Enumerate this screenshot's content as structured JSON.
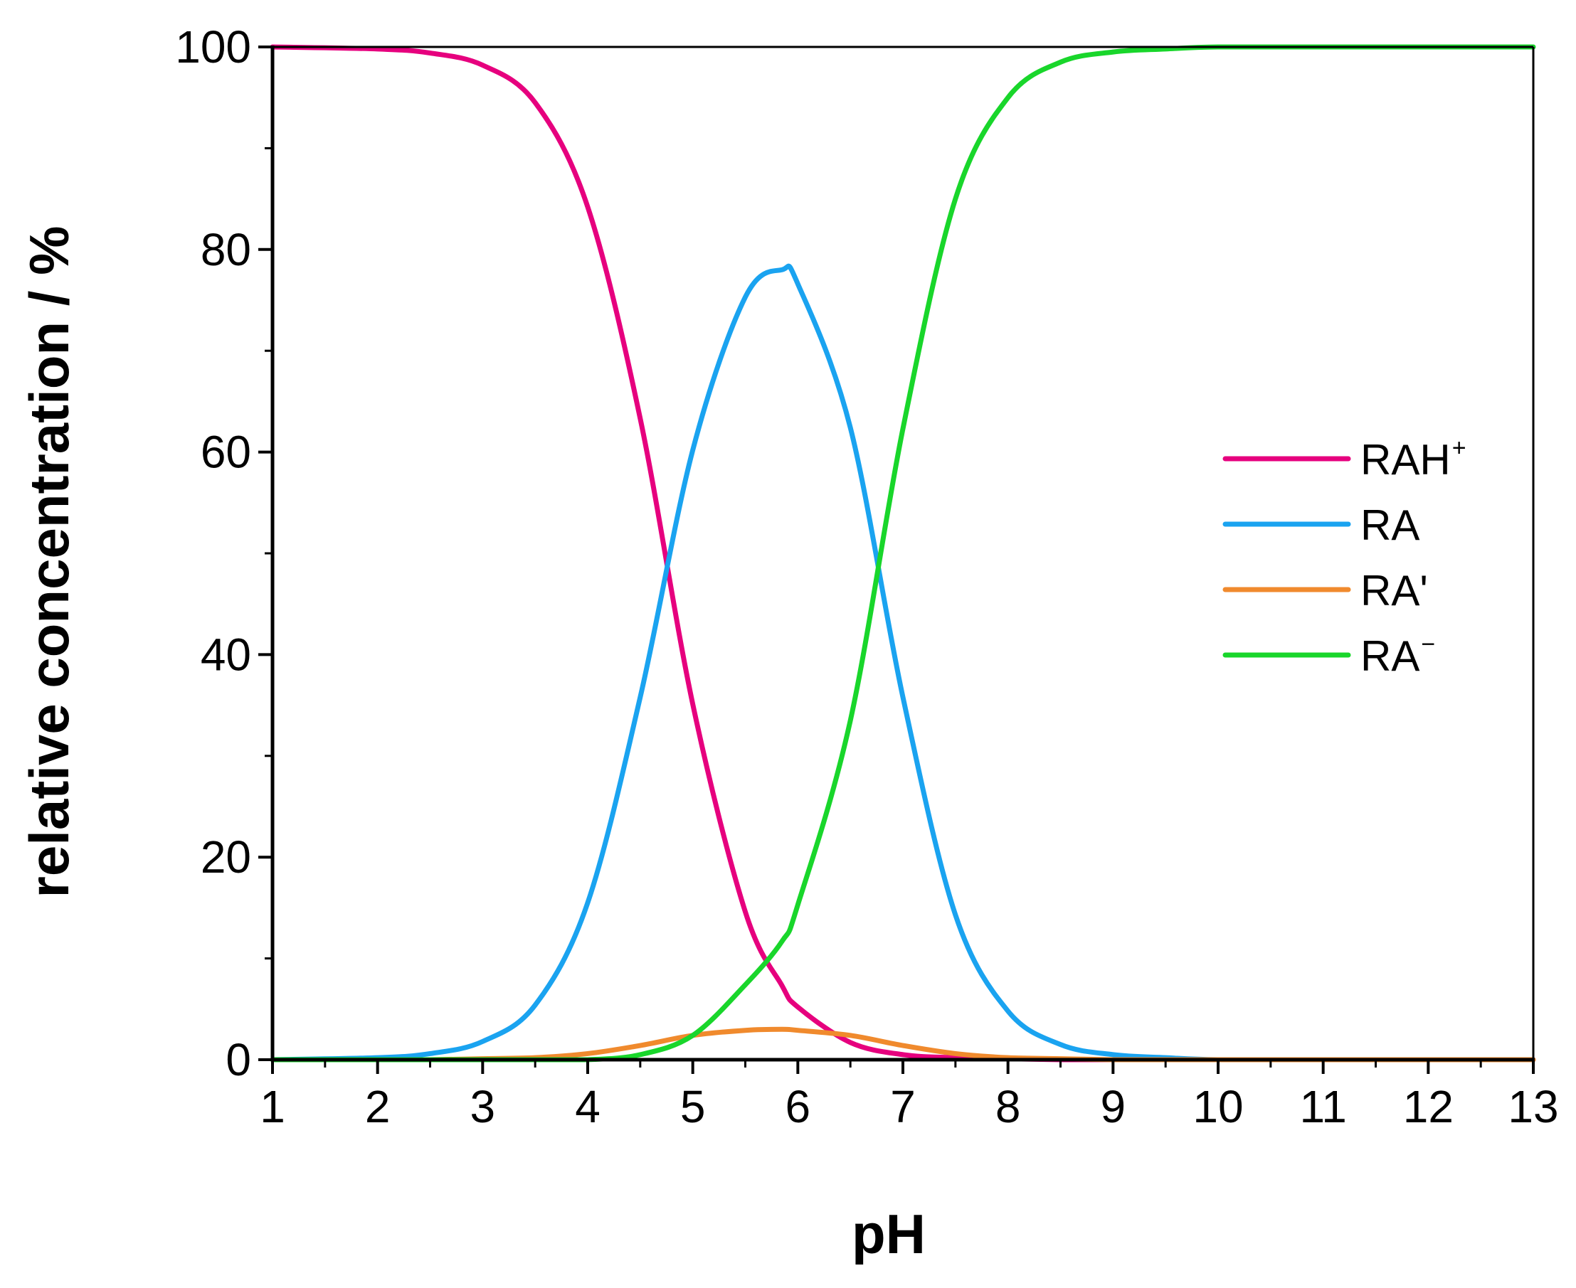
{
  "chart_data": {
    "type": "line",
    "title": "",
    "xlabel": "pH",
    "ylabel": "relative concentration / %",
    "xlim": [
      1,
      13
    ],
    "ylim": [
      0,
      100
    ],
    "x_ticks": [
      "1",
      "2",
      "3",
      "4",
      "5",
      "6",
      "7",
      "8",
      "9",
      "10",
      "11",
      "12",
      "13"
    ],
    "y_ticks": [
      "0",
      "20",
      "40",
      "60",
      "80",
      "100"
    ],
    "legend_position": "right",
    "x": [
      1,
      2,
      2.5,
      3,
      3.5,
      4,
      4.5,
      5,
      5.5,
      5.85,
      6,
      6.5,
      7,
      7.5,
      8,
      8.5,
      9,
      9.5,
      10,
      11,
      12,
      13
    ],
    "series": [
      {
        "name": "RAH",
        "legend_base": "RAH",
        "legend_sup": "+",
        "color": "#e6007e",
        "values": [
          100,
          99.8,
          99.4,
          98.2,
          94.5,
          84.2,
          63.3,
          35.1,
          14.6,
          7.3,
          5.2,
          1.7,
          0.5,
          0.2,
          0.1,
          0,
          0,
          0,
          0,
          0,
          0,
          0
        ]
      },
      {
        "name": "RA",
        "legend_base": "RA",
        "legend_sup": "",
        "color": "#1aa3f0",
        "values": [
          0,
          0.2,
          0.6,
          1.8,
          5.4,
          15.5,
          35.8,
          60.2,
          75.3,
          78.0,
          76.6,
          62.4,
          35.8,
          14.3,
          4.8,
          1.5,
          0.5,
          0.2,
          0,
          0,
          0,
          0
        ]
      },
      {
        "name": "RA'",
        "legend_base": "RA'",
        "legend_sup": "",
        "color": "#f08a2d",
        "values": [
          0,
          0,
          0,
          0.1,
          0.2,
          0.6,
          1.4,
          2.4,
          2.9,
          3.0,
          2.9,
          2.4,
          1.4,
          0.6,
          0.2,
          0.1,
          0,
          0,
          0,
          0,
          0,
          0
        ]
      },
      {
        "name": "RA−",
        "legend_base": "RA",
        "legend_sup": "−",
        "color": "#19d62b",
        "values": [
          0,
          0,
          0,
          0,
          0,
          0,
          0.5,
          2.4,
          7.4,
          11.7,
          15.3,
          33.5,
          62.3,
          85.0,
          95.0,
          98.5,
          99.5,
          99.8,
          100,
          100,
          100,
          100
        ]
      }
    ]
  }
}
